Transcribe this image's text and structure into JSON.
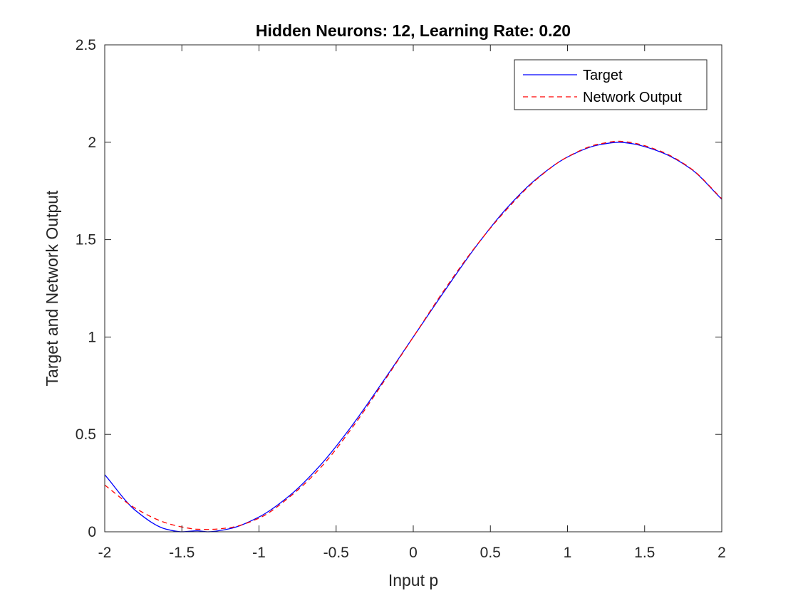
{
  "chart_data": {
    "type": "line",
    "title": "Hidden Neurons: 12, Learning Rate: 0.20",
    "xlabel": "Input p",
    "ylabel": "Target and Network Output",
    "xlim": [
      -2,
      2
    ],
    "ylim": [
      0,
      2.5
    ],
    "xticks": [
      -2,
      -1.5,
      -1,
      -0.5,
      0,
      0.5,
      1,
      1.5,
      2
    ],
    "xtick_labels": [
      "-2",
      "-1.5",
      "-1",
      "-0.5",
      "0",
      "0.5",
      "1",
      "1.5",
      "2"
    ],
    "yticks": [
      0,
      0.5,
      1,
      1.5,
      2,
      2.5
    ],
    "ytick_labels": [
      "0",
      "0.5",
      "1",
      "1.5",
      "2",
      "2.5"
    ],
    "grid": false,
    "legend": {
      "position": "top-right"
    },
    "series": [
      {
        "name": "Target",
        "color": "#0000ff",
        "style": "solid",
        "x": [
          -2,
          -1.8,
          -1.6,
          -1.5,
          -1.4,
          -1.3333,
          -1.2,
          -1.0,
          -0.8,
          -0.6,
          -0.4,
          -0.2,
          0,
          0.2,
          0.4,
          0.6,
          0.8,
          1.0,
          1.2,
          1.3333,
          1.4,
          1.6,
          1.8,
          2
        ],
        "values": [
          0.293,
          0.109,
          0.013,
          0.0,
          0.005,
          0.0,
          0.014,
          0.076,
          0.187,
          0.344,
          0.542,
          0.767,
          1.0,
          1.233,
          1.458,
          1.656,
          1.813,
          1.924,
          1.986,
          2.0,
          1.995,
          1.951,
          1.863,
          1.707
        ]
      },
      {
        "name": "Network Output",
        "color": "#ff0000",
        "style": "dashed",
        "x": [
          -2,
          -1.8,
          -1.6,
          -1.5,
          -1.4,
          -1.3333,
          -1.2,
          -1.0,
          -0.8,
          -0.6,
          -0.4,
          -0.2,
          0,
          0.2,
          0.4,
          0.6,
          0.8,
          1.0,
          1.2,
          1.3333,
          1.4,
          1.6,
          1.8,
          2
        ],
        "values": [
          0.24,
          0.12,
          0.045,
          0.025,
          0.013,
          0.012,
          0.02,
          0.07,
          0.18,
          0.33,
          0.53,
          0.76,
          1.0,
          1.24,
          1.46,
          1.65,
          1.81,
          1.925,
          1.99,
          2.005,
          2.0,
          1.955,
          1.865,
          1.71
        ]
      }
    ]
  }
}
